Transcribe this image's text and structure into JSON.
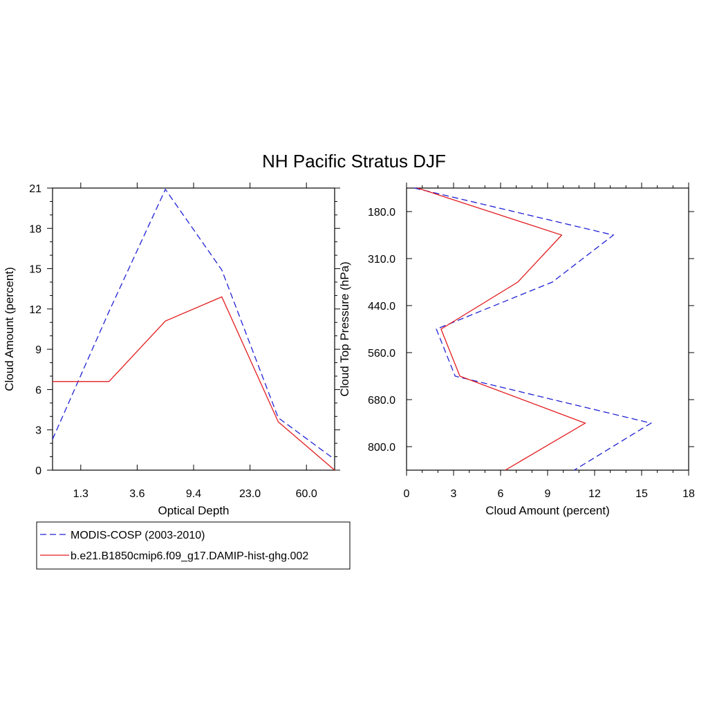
{
  "figure": {
    "title": "NH Pacific Stratus DJF"
  },
  "chart_data": [
    {
      "type": "line",
      "xlabel": "Optical Depth",
      "ylabel": "Cloud Amount (percent)",
      "x_tick_labels": [
        "1.3",
        "3.6",
        "9.4",
        "23.0",
        "60.0"
      ],
      "y_tick_labels": [
        "0",
        "3",
        "6",
        "9",
        "12",
        "15",
        "18",
        "21"
      ],
      "x_index": [
        0,
        1,
        2,
        3,
        4,
        5,
        6
      ],
      "ylim": [
        0,
        21
      ],
      "series": [
        {
          "name": "MODIS-COSP (2003-2010)",
          "color": "#1f1fd6",
          "style": "dashed",
          "values": [
            2.3,
            11.8,
            20.9,
            14.9,
            3.9,
            0.8
          ]
        },
        {
          "name": "b.e21.B1850cmip6.f09_g17.DAMIP-hist-ghg.002",
          "color": "#e31a1c",
          "style": "solid",
          "values": [
            6.6,
            6.6,
            11.1,
            12.9,
            3.6,
            0.0
          ]
        }
      ]
    },
    {
      "type": "line",
      "xlabel": "Cloud Amount (percent)",
      "ylabel": "Cloud Top Pressure (hPa)",
      "x_tick_labels": [
        "0",
        "3",
        "6",
        "9",
        "12",
        "15",
        "18"
      ],
      "y_tick_labels": [
        "180.0",
        "310.0",
        "440.0",
        "560.0",
        "680.0",
        "800.0"
      ],
      "xlim": [
        0,
        18
      ],
      "series": [
        {
          "name": "MODIS-COSP (2003-2010)",
          "color": "#1f1fd6",
          "style": "dashed",
          "values": [
            0.5,
            13.2,
            9.3,
            1.9,
            3.1,
            15.6,
            10.7
          ]
        },
        {
          "name": "b.e21.B1850cmip6.f09_g17.DAMIP-hist-ghg.002",
          "color": "#e31a1c",
          "style": "solid",
          "values": [
            0.7,
            9.9,
            7.1,
            2.2,
            3.4,
            11.4,
            6.3
          ]
        }
      ]
    }
  ],
  "legend": {
    "items": [
      {
        "label": "MODIS-COSP (2003-2010)",
        "color": "#1f1fd6",
        "style": "dashed"
      },
      {
        "label": "b.e21.B1850cmip6.f09_g17.DAMIP-hist-ghg.002",
        "color": "#e31a1c",
        "style": "solid"
      }
    ]
  }
}
